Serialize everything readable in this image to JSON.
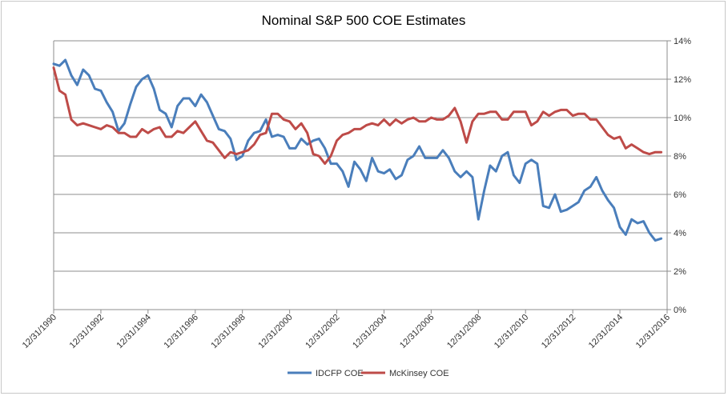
{
  "chart_data": {
    "type": "line",
    "title": "Nominal S&P 500 COE Estimates",
    "xlabel": "",
    "ylabel": "",
    "x_range": [
      "12/31/1990",
      "12/31/2016"
    ],
    "x_tick_labels": [
      "12/31/1990",
      "12/31/1992",
      "12/31/1994",
      "12/31/1996",
      "12/31/1998",
      "12/31/2000",
      "12/31/2002",
      "12/31/2004",
      "12/31/2006",
      "12/31/2008",
      "12/31/2010",
      "12/31/2012",
      "12/31/2014",
      "12/31/2016"
    ],
    "y_axis_side": "right",
    "ylim": [
      0,
      14
    ],
    "y_ticks": [
      0,
      2,
      4,
      6,
      8,
      10,
      12,
      14
    ],
    "y_tick_labels": [
      "0%",
      "2%",
      "4%",
      "6%",
      "8%",
      "10%",
      "12%",
      "14%"
    ],
    "grid": "horizontal",
    "legend_position": "bottom",
    "series": [
      {
        "name": "IDCFP COE",
        "color": "#4a7ebb",
        "x": [
          "12/31/1990",
          "3/31/1991",
          "6/30/1991",
          "9/30/1991",
          "12/31/1991",
          "3/31/1992",
          "6/30/1992",
          "9/30/1992",
          "12/31/1992",
          "3/31/1993",
          "6/30/1993",
          "9/30/1993",
          "12/31/1993",
          "3/31/1994",
          "6/30/1994",
          "9/30/1994",
          "12/31/1994",
          "3/31/1995",
          "6/30/1995",
          "9/30/1995",
          "12/31/1995",
          "3/31/1996",
          "6/30/1996",
          "9/30/1996",
          "12/31/1996",
          "3/31/1997",
          "6/30/1997",
          "9/30/1997",
          "12/31/1997",
          "3/31/1998",
          "6/30/1998",
          "9/30/1998",
          "12/31/1998",
          "3/31/1999",
          "6/30/1999",
          "9/30/1999",
          "12/31/1999",
          "3/31/2000",
          "6/30/2000",
          "9/30/2000",
          "12/31/2000",
          "3/31/2001",
          "6/30/2001",
          "9/30/2001",
          "12/31/2001",
          "3/31/2002",
          "6/30/2002",
          "9/30/2002",
          "12/31/2002",
          "3/31/2003",
          "6/30/2003",
          "9/30/2003",
          "12/31/2003",
          "3/31/2004",
          "6/30/2004",
          "9/30/2004",
          "12/31/2004",
          "3/31/2005",
          "6/30/2005",
          "9/30/2005",
          "12/31/2005",
          "3/31/2006",
          "6/30/2006",
          "9/30/2006",
          "12/31/2006",
          "3/31/2007",
          "6/30/2007",
          "9/30/2007",
          "12/31/2007",
          "3/31/2008",
          "6/30/2008",
          "9/30/2008",
          "12/31/2008",
          "3/31/2009",
          "6/30/2009",
          "9/30/2009",
          "12/31/2009",
          "3/31/2010",
          "6/30/2010",
          "9/30/2010",
          "12/31/2010",
          "3/31/2011",
          "6/30/2011",
          "9/30/2011",
          "12/31/2011",
          "3/31/2012",
          "6/30/2012",
          "9/30/2012",
          "12/31/2012",
          "3/31/2013",
          "6/30/2013",
          "9/30/2013",
          "12/31/2013",
          "3/31/2014",
          "6/30/2014",
          "9/30/2014",
          "12/31/2014",
          "3/31/2015",
          "6/30/2015",
          "9/30/2015",
          "12/31/2015",
          "3/31/2016",
          "6/30/2016",
          "9/30/2016"
        ],
        "values": [
          12.8,
          12.7,
          13.0,
          12.2,
          11.7,
          12.5,
          12.2,
          11.5,
          11.4,
          10.8,
          10.3,
          9.3,
          9.7,
          10.7,
          11.6,
          12.0,
          12.2,
          11.5,
          10.4,
          10.2,
          9.5,
          10.6,
          11.0,
          11.0,
          10.6,
          11.2,
          10.8,
          10.1,
          9.4,
          9.3,
          8.9,
          7.8,
          8.0,
          8.8,
          9.2,
          9.3,
          9.9,
          9.0,
          9.1,
          9.0,
          8.4,
          8.4,
          8.9,
          8.6,
          8.8,
          8.9,
          8.4,
          7.6,
          7.6,
          7.2,
          6.4,
          7.7,
          7.3,
          6.7,
          7.9,
          7.2,
          7.1,
          7.3,
          6.8,
          7.0,
          7.8,
          8.0,
          8.5,
          7.9,
          7.9,
          7.9,
          8.3,
          7.9,
          7.2,
          6.9,
          7.2,
          6.9,
          4.7,
          6.2,
          7.5,
          7.2,
          8.0,
          8.2,
          7.0,
          6.6,
          7.6,
          7.8,
          7.6,
          5.4,
          5.3,
          6.0,
          5.1,
          5.2,
          5.4,
          5.6,
          6.2,
          6.4,
          6.9,
          6.2,
          5.7,
          5.3,
          4.3,
          3.9,
          4.7,
          4.5,
          4.6,
          4.0,
          3.6,
          3.7
        ]
      },
      {
        "name": "McKinsey COE",
        "color": "#be4b48",
        "x": [
          "12/31/1990",
          "3/31/1991",
          "6/30/1991",
          "9/30/1991",
          "12/31/1991",
          "3/31/1992",
          "6/30/1992",
          "9/30/1992",
          "12/31/1992",
          "3/31/1993",
          "6/30/1993",
          "9/30/1993",
          "12/31/1993",
          "3/31/1994",
          "6/30/1994",
          "9/30/1994",
          "12/31/1994",
          "3/31/1995",
          "6/30/1995",
          "9/30/1995",
          "12/31/1995",
          "3/31/1996",
          "6/30/1996",
          "9/30/1996",
          "12/31/1996",
          "3/31/1997",
          "6/30/1997",
          "9/30/1997",
          "12/31/1997",
          "3/31/1998",
          "6/30/1998",
          "9/30/1998",
          "12/31/1998",
          "3/31/1999",
          "6/30/1999",
          "9/30/1999",
          "12/31/1999",
          "3/31/2000",
          "6/30/2000",
          "9/30/2000",
          "12/31/2000",
          "3/31/2001",
          "6/30/2001",
          "9/30/2001",
          "12/31/2001",
          "3/31/2002",
          "6/30/2002",
          "9/30/2002",
          "12/31/2002",
          "3/31/2003",
          "6/30/2003",
          "9/30/2003",
          "12/31/2003",
          "3/31/2004",
          "6/30/2004",
          "9/30/2004",
          "12/31/2004",
          "3/31/2005",
          "6/30/2005",
          "9/30/2005",
          "12/31/2005",
          "3/31/2006",
          "6/30/2006",
          "9/30/2006",
          "12/31/2006",
          "3/31/2007",
          "6/30/2007",
          "9/30/2007",
          "12/31/2007",
          "3/31/2008",
          "6/30/2008",
          "9/30/2008",
          "12/31/2008",
          "3/31/2009",
          "6/30/2009",
          "9/30/2009",
          "12/31/2009",
          "3/31/2010",
          "6/30/2010",
          "9/30/2010",
          "12/31/2010",
          "3/31/2011",
          "6/30/2011",
          "9/30/2011",
          "12/31/2011",
          "3/31/2012",
          "6/30/2012",
          "9/30/2012",
          "12/31/2012",
          "3/31/2013",
          "6/30/2013",
          "9/30/2013",
          "12/31/2013",
          "3/31/2014",
          "6/30/2014",
          "9/30/2014",
          "12/31/2014",
          "3/31/2015",
          "6/30/2015",
          "9/30/2015",
          "12/31/2015",
          "3/31/2016",
          "6/30/2016",
          "9/30/2016"
        ],
        "values": [
          12.6,
          11.4,
          11.2,
          9.9,
          9.6,
          9.7,
          9.6,
          9.5,
          9.4,
          9.6,
          9.5,
          9.2,
          9.2,
          9.0,
          9.0,
          9.4,
          9.2,
          9.4,
          9.5,
          9.0,
          9.0,
          9.3,
          9.2,
          9.5,
          9.8,
          9.3,
          8.8,
          8.7,
          8.3,
          7.9,
          8.2,
          8.1,
          8.2,
          8.3,
          8.6,
          9.1,
          9.2,
          10.2,
          10.2,
          9.9,
          9.8,
          9.4,
          9.7,
          9.2,
          8.1,
          8.0,
          7.6,
          8.0,
          8.8,
          9.1,
          9.2,
          9.4,
          9.4,
          9.6,
          9.7,
          9.6,
          9.9,
          9.6,
          9.9,
          9.7,
          9.9,
          10.0,
          9.8,
          9.8,
          10.0,
          9.9,
          9.9,
          10.1,
          10.5,
          9.8,
          8.7,
          9.8,
          10.2,
          10.2,
          10.3,
          10.3,
          9.9,
          9.9,
          10.3,
          10.3,
          10.3,
          9.6,
          9.8,
          10.3,
          10.1,
          10.3,
          10.4,
          10.4,
          10.1,
          10.2,
          10.2,
          9.9,
          9.9,
          9.5,
          9.1,
          8.9,
          9.0,
          8.4,
          8.6,
          8.4,
          8.2,
          8.1,
          8.2,
          8.2
        ]
      }
    ]
  }
}
